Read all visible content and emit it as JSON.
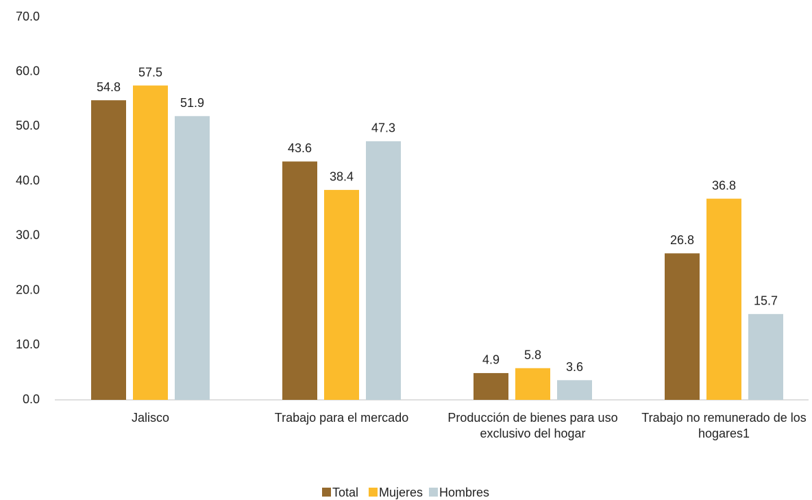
{
  "chart_data": {
    "type": "bar",
    "categories": [
      "Jalisco",
      "Trabajo para el mercado",
      "Producción de bienes para uso exclusivo del hogar",
      "Trabajo no remunerado de los hogares1"
    ],
    "series": [
      {
        "name": "Total",
        "color": "#956a2d",
        "values": [
          54.8,
          43.6,
          4.9,
          26.8
        ]
      },
      {
        "name": "Mujeres",
        "color": "#fbbb2c",
        "values": [
          57.5,
          38.4,
          5.8,
          36.8
        ]
      },
      {
        "name": "Hombres",
        "color": "#bfd0d7",
        "values": [
          51.9,
          47.3,
          3.6,
          15.7
        ]
      }
    ],
    "ylim": [
      0,
      70
    ],
    "yticks": [
      {
        "value": 0,
        "label": "0.0"
      },
      {
        "value": 10,
        "label": "10.0"
      },
      {
        "value": 20,
        "label": "20.0"
      },
      {
        "value": 30,
        "label": "30.0"
      },
      {
        "value": 40,
        "label": "40.0"
      },
      {
        "value": 50,
        "label": "50.0"
      },
      {
        "value": 60,
        "label": "60.0"
      },
      {
        "value": 70,
        "label": "70.0"
      }
    ],
    "grid": false,
    "legend": "bottom"
  }
}
